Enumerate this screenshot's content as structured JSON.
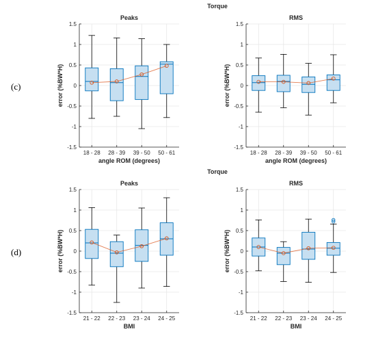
{
  "colors": {
    "box_fill": "#c6dff1",
    "box_edge": "#0072bd",
    "whisker": "#000000",
    "median": "#0072bd",
    "mean_marker": "#d95319",
    "mean_line": "#d95319",
    "outlier": "#0072bd",
    "grid": "#e6e6e6",
    "axis": "#262626"
  },
  "rows": [
    {
      "label": "(c)",
      "title": "Torque",
      "xlabel": "angle ROM (degrees)",
      "ylabel": "error (%BW*H)",
      "categories": [
        "18 - 28",
        "28 - 39",
        "39 - 50",
        "50 - 61"
      ]
    },
    {
      "label": "(d)",
      "title": "Torque",
      "xlabel": "BMI",
      "ylabel": "error (%BW*H)",
      "categories": [
        "21 - 22",
        "22 - 23",
        "23 - 24",
        "24 - 25"
      ]
    }
  ],
  "chart_data": [
    {
      "type": "box",
      "row": 0,
      "col": 0,
      "title": "Peaks",
      "xlabel": "angle ROM (degrees)",
      "ylabel": "error (%BW*H)",
      "ylim": [
        -1.5,
        1.5
      ],
      "yticks": [
        -1.5,
        -1,
        -0.5,
        0,
        0.5,
        1,
        1.5
      ],
      "grid": true,
      "categories": [
        "18 - 28",
        "28 - 39",
        "39 - 50",
        "50 - 61"
      ],
      "boxes": [
        {
          "min": -0.8,
          "q1": -0.13,
          "median": 0.1,
          "q3": 0.43,
          "max": 1.22,
          "mean": 0.07
        },
        {
          "min": -0.75,
          "q1": -0.37,
          "median": 0.07,
          "q3": 0.41,
          "max": 1.16,
          "mean": 0.1
        },
        {
          "min": -1.05,
          "q1": -0.34,
          "median": 0.22,
          "q3": 0.48,
          "max": 1.14,
          "mean": 0.27
        },
        {
          "min": -0.78,
          "q1": -0.2,
          "median": 0.52,
          "q3": 0.58,
          "max": 1.0,
          "mean": 0.48
        }
      ],
      "outliers": []
    },
    {
      "type": "box",
      "row": 0,
      "col": 1,
      "title": "RMS",
      "xlabel": "angle ROM (degrees)",
      "ylabel": "error (%BW*H)",
      "ylim": [
        -1.5,
        1.5
      ],
      "yticks": [
        -1.5,
        -1,
        -0.5,
        0,
        0.5,
        1,
        1.5
      ],
      "grid": true,
      "categories": [
        "18 - 28",
        "28 - 39",
        "39 - 50",
        "50 - 61"
      ],
      "boxes": [
        {
          "min": -0.65,
          "q1": -0.12,
          "median": 0.07,
          "q3": 0.24,
          "max": 0.67,
          "mean": 0.09
        },
        {
          "min": -0.54,
          "q1": -0.15,
          "median": 0.1,
          "q3": 0.25,
          "max": 0.76,
          "mean": 0.09
        },
        {
          "min": -0.72,
          "q1": -0.17,
          "median": 0.03,
          "q3": 0.21,
          "max": 0.54,
          "mean": 0.06
        },
        {
          "min": -0.42,
          "q1": -0.12,
          "median": 0.14,
          "q3": 0.26,
          "max": 0.75,
          "mean": 0.17
        }
      ],
      "outliers": []
    },
    {
      "type": "box",
      "row": 1,
      "col": 0,
      "title": "Peaks",
      "xlabel": "BMI",
      "ylabel": "error (%BW*H)",
      "ylim": [
        -1.5,
        1.5
      ],
      "yticks": [
        -1.5,
        -1,
        -0.5,
        0,
        0.5,
        1,
        1.5
      ],
      "grid": true,
      "categories": [
        "21 - 22",
        "22 - 23",
        "23 - 24",
        "24 - 25"
      ],
      "boxes": [
        {
          "min": -0.83,
          "q1": -0.18,
          "median": 0.2,
          "q3": 0.53,
          "max": 1.06,
          "mean": 0.21
        },
        {
          "min": -1.25,
          "q1": -0.38,
          "median": -0.05,
          "q3": 0.23,
          "max": 0.39,
          "mean": -0.03
        },
        {
          "min": -0.9,
          "q1": -0.25,
          "median": 0.14,
          "q3": 0.52,
          "max": 1.05,
          "mean": 0.12
        },
        {
          "min": -0.86,
          "q1": -0.1,
          "median": 0.3,
          "q3": 0.69,
          "max": 1.3,
          "mean": 0.31
        }
      ],
      "outliers": []
    },
    {
      "type": "box",
      "row": 1,
      "col": 1,
      "title": "RMS",
      "xlabel": "BMI",
      "ylabel": "error (%BW*H)",
      "ylim": [
        -1.5,
        1.5
      ],
      "yticks": [
        -1.5,
        -1,
        -0.5,
        0,
        0.5,
        1,
        1.5
      ],
      "grid": true,
      "categories": [
        "21 - 22",
        "22 - 23",
        "23 - 24",
        "24 - 25"
      ],
      "boxes": [
        {
          "min": -0.48,
          "q1": -0.12,
          "median": 0.1,
          "q3": 0.32,
          "max": 0.76,
          "mean": 0.1
        },
        {
          "min": -0.74,
          "q1": -0.33,
          "median": -0.05,
          "q3": 0.09,
          "max": 0.23,
          "mean": -0.05
        },
        {
          "min": -0.76,
          "q1": -0.2,
          "median": 0.05,
          "q3": 0.46,
          "max": 0.78,
          "mean": 0.07
        },
        {
          "min": -0.52,
          "q1": -0.1,
          "median": 0.07,
          "q3": 0.21,
          "max": 0.66,
          "mean": 0.08
        }
      ],
      "outliers": [
        {
          "category": 3,
          "value": 0.72
        },
        {
          "category": 3,
          "value": 0.76
        }
      ]
    }
  ]
}
